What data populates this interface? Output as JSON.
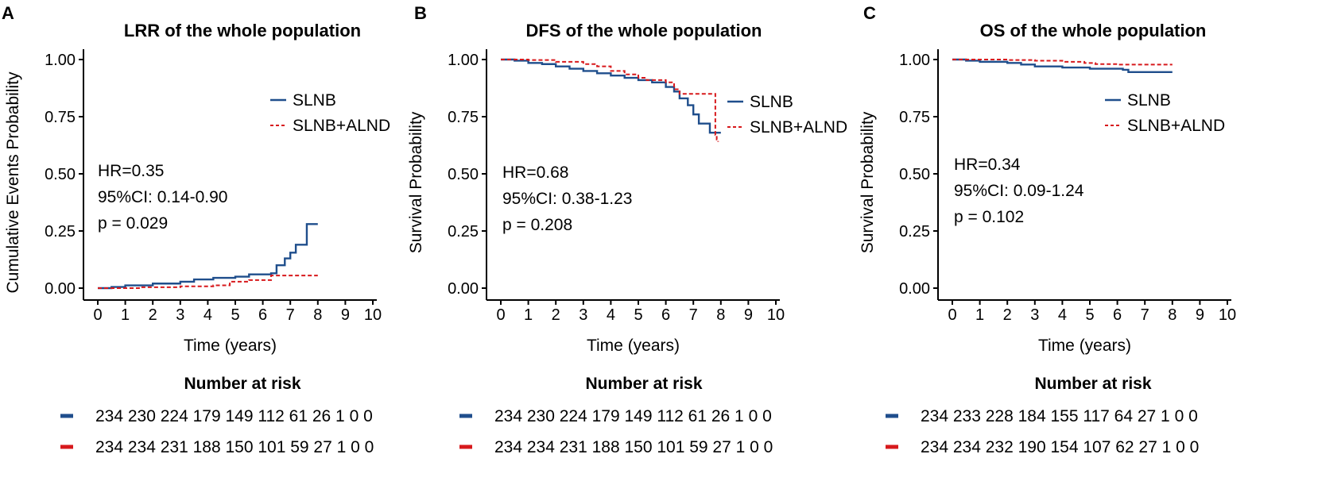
{
  "colors": {
    "slnb": "#1f4e8c",
    "alnd": "#d7191c",
    "axis": "#000000"
  },
  "chart_data": [
    {
      "type": "line",
      "panel": "A",
      "title": "LRR of the whole population",
      "xlabel": "Time (years)",
      "ylabel": "Cumulative Events Probability",
      "xlim": [
        0,
        10
      ],
      "ylim": [
        0,
        1
      ],
      "xticks": [
        "0",
        "1",
        "2",
        "3",
        "4",
        "5",
        "6",
        "7",
        "8",
        "9",
        "10"
      ],
      "yticks": [
        "0.00",
        "0.25",
        "0.50",
        "0.75",
        "1.00"
      ],
      "legend": [
        "SLNB",
        "SLNB+ALND"
      ],
      "stats": {
        "hr": "HR=0.35",
        "ci": "95%CI: 0.14-0.90",
        "p": "p = 0.029"
      },
      "series": [
        {
          "name": "SLNB",
          "x": [
            0,
            0.5,
            1,
            2,
            3,
            3.5,
            4.2,
            5,
            5.5,
            6.3,
            6.5,
            6.8,
            7,
            7.2,
            7.6,
            8
          ],
          "y": [
            0,
            0.005,
            0.012,
            0.02,
            0.028,
            0.038,
            0.045,
            0.05,
            0.06,
            0.065,
            0.1,
            0.13,
            0.155,
            0.19,
            0.28,
            0.28
          ]
        },
        {
          "name": "SLNB+ALND",
          "x": [
            0,
            1.5,
            3,
            4.2,
            4.8,
            5.5,
            6.3,
            7,
            8
          ],
          "y": [
            0,
            0.004,
            0.008,
            0.012,
            0.028,
            0.035,
            0.055,
            0.055,
            0.055
          ]
        }
      ],
      "risk_table": {
        "title": "Number at risk",
        "rows": [
          "234 230 224 179 149 112 61 26 1 0 0",
          "234 234 231 188 150 101 59 27 1 0 0"
        ]
      }
    },
    {
      "type": "line",
      "panel": "B",
      "title": "DFS of the whole population",
      "xlabel": "Time (years)",
      "ylabel": "Survival Probability",
      "xlim": [
        0,
        10
      ],
      "ylim": [
        0,
        1
      ],
      "xticks": [
        "0",
        "1",
        "2",
        "3",
        "4",
        "5",
        "6",
        "7",
        "8",
        "9",
        "10"
      ],
      "yticks": [
        "0.00",
        "0.25",
        "0.50",
        "0.75",
        "1.00"
      ],
      "legend": [
        "SLNB",
        "SLNB+ALND"
      ],
      "stats": {
        "hr": "HR=0.68",
        "ci": "95%CI: 0.38-1.23",
        "p": "p = 0.208"
      },
      "series": [
        {
          "name": "SLNB",
          "x": [
            0,
            0.5,
            1,
            1.5,
            2,
            2.5,
            3,
            3.5,
            4,
            4.5,
            5,
            5.5,
            6,
            6.3,
            6.5,
            6.8,
            7,
            7.2,
            7.6,
            8
          ],
          "y": [
            1,
            0.995,
            0.985,
            0.98,
            0.97,
            0.96,
            0.95,
            0.94,
            0.93,
            0.92,
            0.91,
            0.9,
            0.88,
            0.86,
            0.83,
            0.8,
            0.76,
            0.72,
            0.68,
            0.68
          ]
        },
        {
          "name": "SLNB+ALND",
          "x": [
            0,
            1,
            2,
            3,
            3.5,
            4,
            4.5,
            5,
            5.3,
            6,
            6.3,
            6.5,
            7,
            7.5,
            7.8,
            7.85,
            7.9
          ],
          "y": [
            1,
            0.998,
            0.99,
            0.98,
            0.97,
            0.95,
            0.935,
            0.92,
            0.91,
            0.9,
            0.87,
            0.85,
            0.85,
            0.85,
            0.67,
            0.65,
            0.64
          ]
        }
      ],
      "risk_table": {
        "title": "Number at risk",
        "rows": [
          "234 230 224 179 149 112 61 26 1 0 0",
          "234 234 231 188 150 101 59 27 1 0 0"
        ]
      }
    },
    {
      "type": "line",
      "panel": "C",
      "title": "OS of the whole population",
      "xlabel": "Time (years)",
      "ylabel": "Survival Probability",
      "xlim": [
        0,
        10
      ],
      "ylim": [
        0,
        1
      ],
      "xticks": [
        "0",
        "1",
        "2",
        "3",
        "4",
        "5",
        "6",
        "7",
        "8",
        "9",
        "10"
      ],
      "yticks": [
        "0.00",
        "0.25",
        "0.50",
        "0.75",
        "1.00"
      ],
      "legend": [
        "SLNB",
        "SLNB+ALND"
      ],
      "stats": {
        "hr": "HR=0.34",
        "ci": "95%CI: 0.09-1.24",
        "p": "p = 0.102"
      },
      "series": [
        {
          "name": "SLNB",
          "x": [
            0,
            0.5,
            1,
            2,
            2.5,
            3,
            4,
            5,
            6.2,
            6.4,
            8
          ],
          "y": [
            1,
            0.995,
            0.99,
            0.985,
            0.978,
            0.97,
            0.965,
            0.96,
            0.955,
            0.945,
            0.945
          ]
        },
        {
          "name": "SLNB+ALND",
          "x": [
            0,
            1,
            2,
            3,
            4,
            4.8,
            5.2,
            6,
            7,
            8
          ],
          "y": [
            1,
            1,
            0.998,
            0.995,
            0.99,
            0.985,
            0.98,
            0.978,
            0.978,
            0.978
          ]
        }
      ],
      "risk_table": {
        "title": "Number at risk",
        "rows": [
          "234 233 228 184 155 117 64 27 1 0 0",
          "234 234 232 190 154 107 62 27 1 0 0"
        ]
      }
    }
  ]
}
